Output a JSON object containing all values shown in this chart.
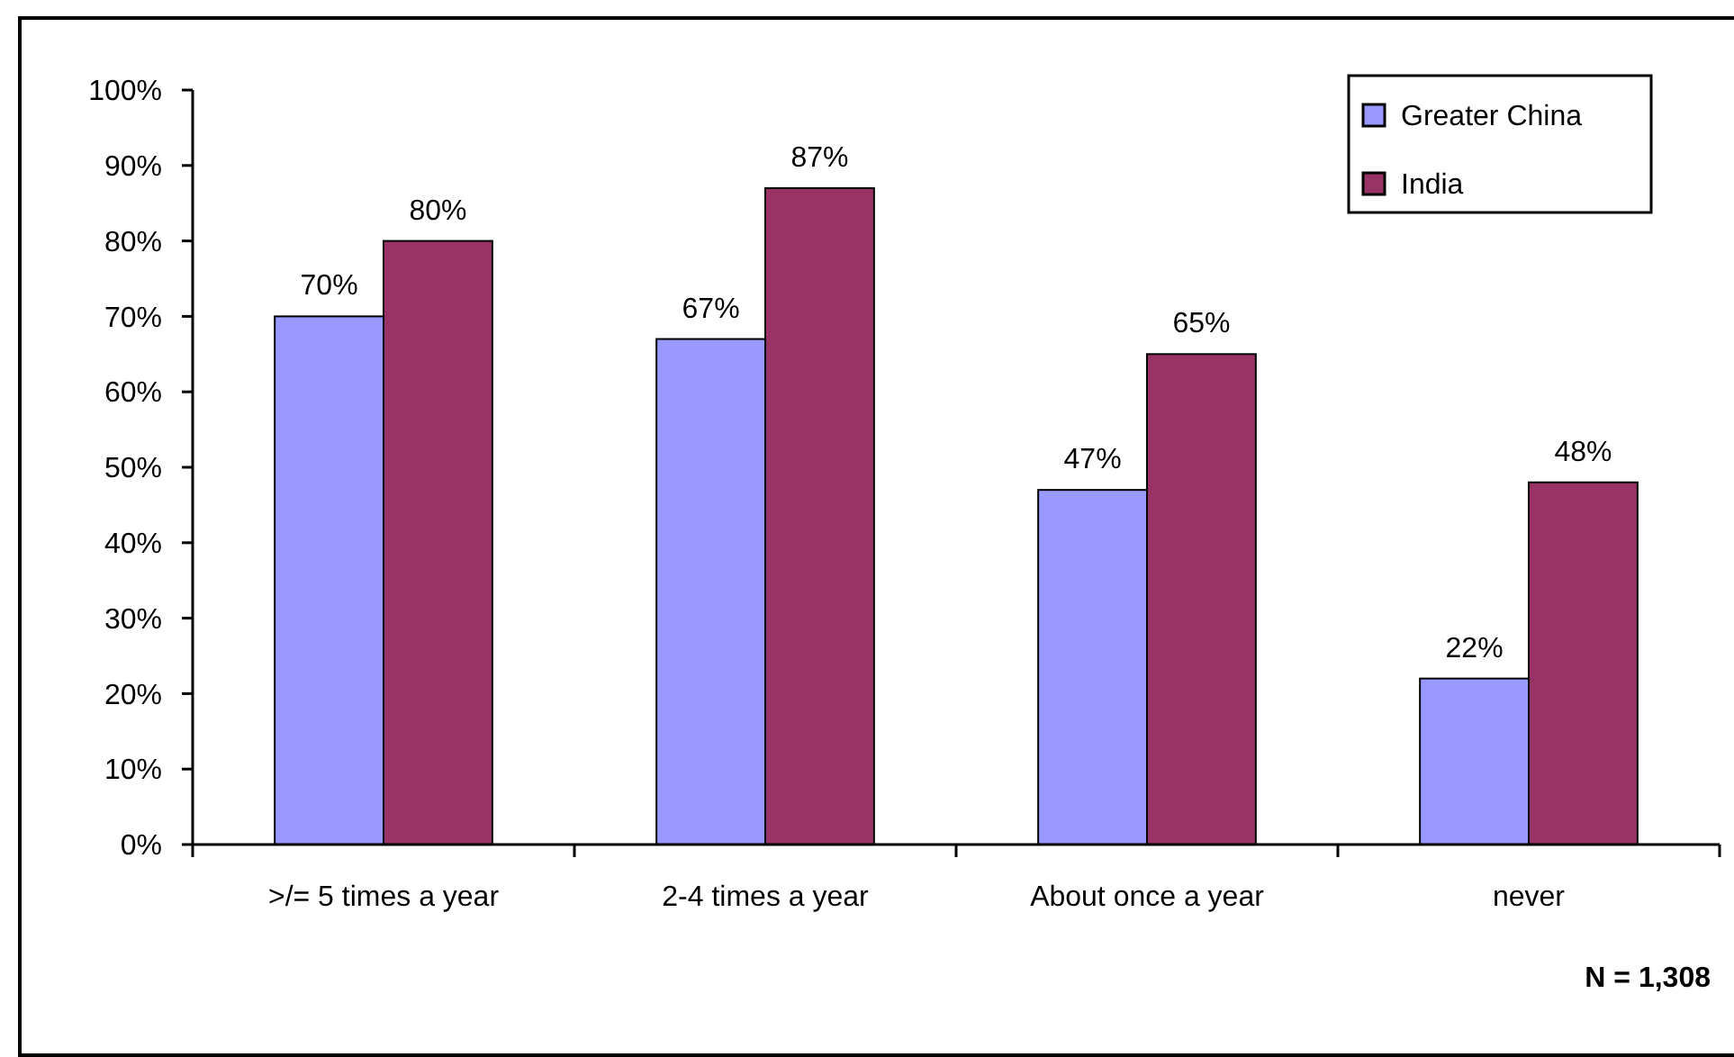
{
  "chart_data": {
    "type": "bar",
    "categories": [
      ">/= 5 times a year",
      "2-4 times a year",
      "About once a year",
      "never"
    ],
    "series": [
      {
        "name": "Greater China",
        "color": "#9999ff",
        "values": [
          70,
          67,
          47,
          22
        ],
        "value_labels": [
          "70%",
          "67%",
          "47%",
          "22%"
        ]
      },
      {
        "name": "India",
        "color": "#993366",
        "values": [
          80,
          87,
          65,
          48
        ],
        "value_labels": [
          "80%",
          "87%",
          "65%",
          "48%"
        ]
      }
    ],
    "ylim": [
      0,
      100
    ],
    "yticks": [
      {
        "value": 0,
        "label": "0%"
      },
      {
        "value": 10,
        "label": "10%"
      },
      {
        "value": 20,
        "label": "20%"
      },
      {
        "value": 30,
        "label": "30%"
      },
      {
        "value": 40,
        "label": "40%"
      },
      {
        "value": 50,
        "label": "50%"
      },
      {
        "value": 60,
        "label": "60%"
      },
      {
        "value": 70,
        "label": "70%"
      },
      {
        "value": 80,
        "label": "80%"
      },
      {
        "value": 90,
        "label": "90%"
      },
      {
        "value": 100,
        "label": "100%"
      }
    ],
    "grid": false,
    "legend": "top right",
    "annotations": [
      "N = 1,308"
    ]
  }
}
